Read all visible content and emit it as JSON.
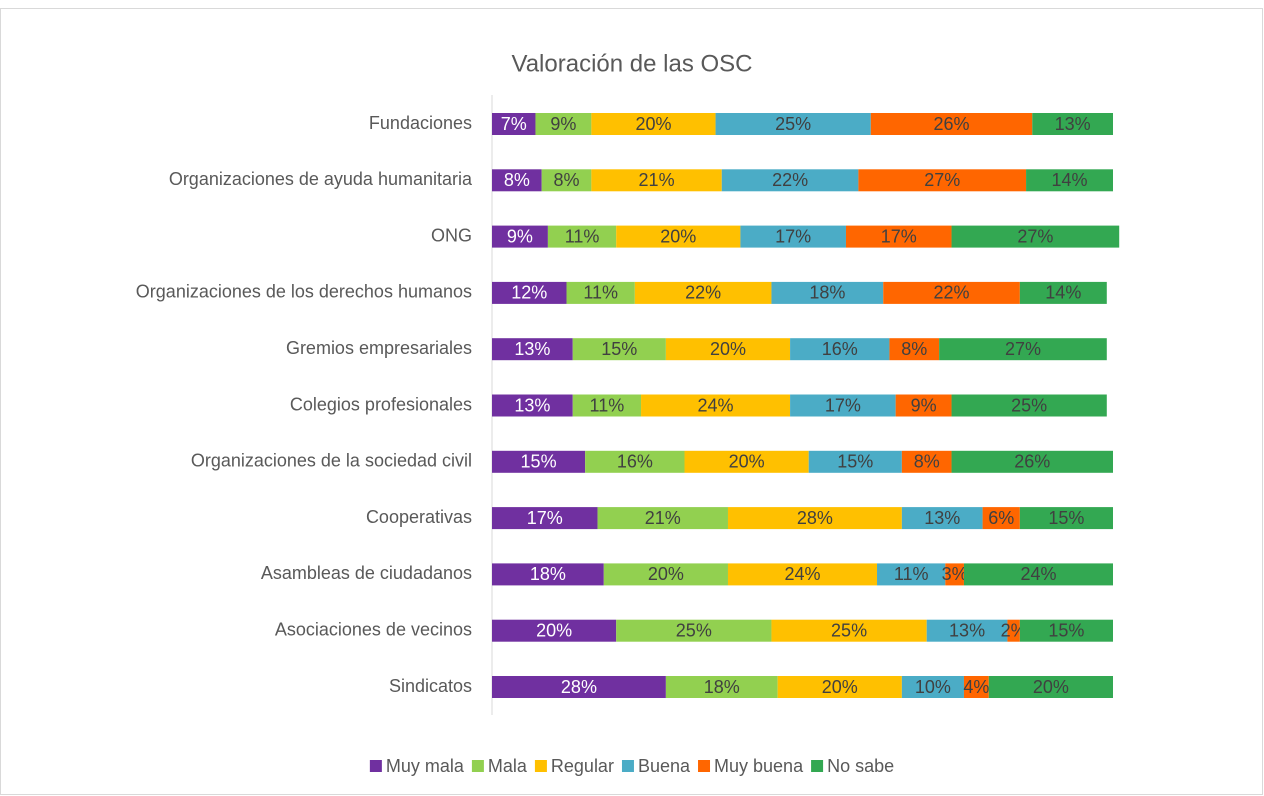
{
  "chart_data": {
    "type": "bar",
    "orientation": "horizontal",
    "stacked": true,
    "title": "Valoración de las OSC",
    "categories": [
      "Fundaciones",
      "Organizaciones de ayuda humanitaria",
      "ONG",
      "Organizaciones de los derechos humanos",
      "Gremios empresariales",
      "Colegios profesionales",
      "Organizaciones de la sociedad civil",
      "Cooperativas",
      "Asambleas de ciudadanos",
      "Asociaciones de vecinos",
      "Sindicatos"
    ],
    "xlim": [
      0,
      100
    ],
    "legend": "bottom",
    "series": [
      {
        "name": "Muy mala",
        "color": "#7030a0",
        "values": [
          7,
          8,
          9,
          12,
          13,
          13,
          15,
          17,
          18,
          20,
          28
        ],
        "value_labels": [
          "7%",
          "8%",
          "9%",
          "12%",
          "13%",
          "13%",
          "15%",
          "17%",
          "18%",
          "20%",
          "28%"
        ]
      },
      {
        "name": "Mala",
        "color": "#92d050",
        "values": [
          9,
          8,
          11,
          11,
          15,
          11,
          16,
          21,
          20,
          25,
          18
        ],
        "value_labels": [
          "9%",
          "8%",
          "11%",
          "11%",
          "15%",
          "11%",
          "16%",
          "21%",
          "20%",
          "25%",
          "18%"
        ]
      },
      {
        "name": "Regular",
        "color": "#ffc000",
        "values": [
          20,
          21,
          20,
          22,
          20,
          24,
          20,
          28,
          24,
          25,
          20
        ],
        "value_labels": [
          "20%",
          "21%",
          "20%",
          "22%",
          "20%",
          "24%",
          "20%",
          "28%",
          "24%",
          "25%",
          "20%"
        ]
      },
      {
        "name": "Buena",
        "color": "#4bacc6",
        "values": [
          25,
          22,
          17,
          18,
          16,
          17,
          15,
          13,
          11,
          13,
          10
        ],
        "value_labels": [
          "25%",
          "22%",
          "17%",
          "18%",
          "16%",
          "17%",
          "15%",
          "13%",
          "11%",
          "13%",
          "10%"
        ]
      },
      {
        "name": "Muy buena",
        "color": "#ff6600",
        "values": [
          26,
          27,
          17,
          22,
          8,
          9,
          8,
          6,
          3,
          2,
          4
        ],
        "value_labels": [
          "26%",
          "27%",
          "17%",
          "22%",
          "8%",
          "9%",
          "8%",
          "6%",
          "3%",
          "2%",
          "4%"
        ]
      },
      {
        "name": "No sabe",
        "color": "#33a852",
        "values": [
          13,
          14,
          27,
          14,
          27,
          25,
          26,
          15,
          24,
          15,
          20
        ],
        "value_labels": [
          "13%",
          "14%",
          "27%",
          "14%",
          "27%",
          "25%",
          "26%",
          "15%",
          "24%",
          "15%",
          "20%"
        ]
      }
    ]
  }
}
